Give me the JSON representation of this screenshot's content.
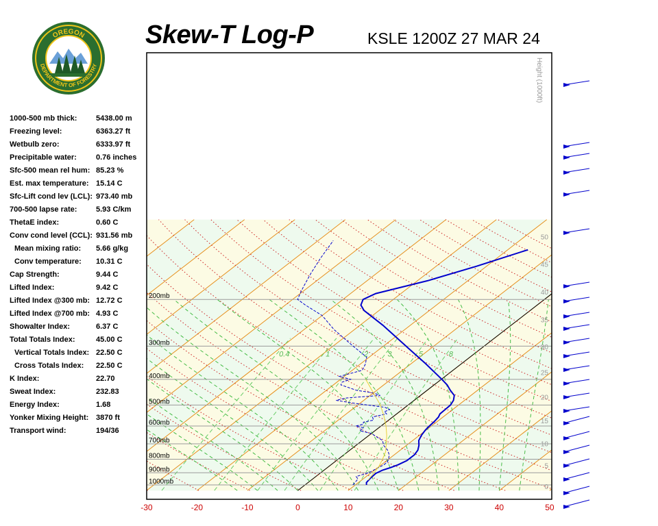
{
  "title": "Skew-T Log-P",
  "station_time": "KSLE 1200Z 27 MAR 24",
  "logo": {
    "top_text": "OREGON",
    "bottom_text": "DEPARTMENT OF FORESTRY",
    "colors": {
      "green": "#2b6e2f",
      "gold": "#f0c419"
    }
  },
  "indices": [
    {
      "label": "1000-500 mb thick:",
      "value": "5438.00 m",
      "indent": false
    },
    {
      "label": "Freezing level:",
      "value": "6363.27 ft",
      "indent": false
    },
    {
      "label": "Wetbulb zero:",
      "value": "6333.97 ft",
      "indent": false
    },
    {
      "label": "Precipitable water:",
      "value": "0.76 inches",
      "indent": false
    },
    {
      "label": "Sfc-500 mean rel hum:",
      "value": "85.23 %",
      "indent": false
    },
    {
      "label": "Est. max temperature:",
      "value": "15.14 C",
      "indent": false
    },
    {
      "label": "Sfc-Lift cond lev (LCL):",
      "value": "973.40 mb",
      "indent": false
    },
    {
      "label": "700-500 lapse rate:",
      "value": "5.93 C/km",
      "indent": false
    },
    {
      "label": "ThetaE index:",
      "value": "0.60 C",
      "indent": false
    },
    {
      "label": "Conv cond level (CCL):",
      "value": "931.56 mb",
      "indent": false
    },
    {
      "label": "Mean mixing ratio:",
      "value": "5.66 g/kg",
      "indent": true
    },
    {
      "label": "Conv temperature:",
      "value": "10.31 C",
      "indent": true
    },
    {
      "label": "Cap Strength:",
      "value": "9.44 C",
      "indent": false
    },
    {
      "label": "Lifted Index:",
      "value": "9.42 C",
      "indent": false
    },
    {
      "label": "Lifted Index @300 mb:",
      "value": "12.72 C",
      "indent": false
    },
    {
      "label": "Lifted Index @700 mb:",
      "value": "4.93 C",
      "indent": false
    },
    {
      "label": "Showalter Index:",
      "value": "6.37 C",
      "indent": false
    },
    {
      "label": "Total Totals Index:",
      "value": "45.00 C",
      "indent": false
    },
    {
      "label": "Vertical Totals Index:",
      "value": "22.50 C",
      "indent": true
    },
    {
      "label": "Cross Totals Index:",
      "value": "22.50 C",
      "indent": true
    },
    {
      "label": "K Index:",
      "value": "22.70",
      "indent": false
    },
    {
      "label": "Sweat Index:",
      "value": "232.83",
      "indent": false
    },
    {
      "label": "Energy Index:",
      "value": "1.68",
      "indent": false
    },
    {
      "label": "Yonker Mixing Height:",
      "value": "3870 ft",
      "indent": false
    },
    {
      "label": "Transport wind:",
      "value": "194/36",
      "indent": false
    }
  ],
  "chart_data": {
    "type": "line",
    "title": "Skew-T Log-P",
    "xlabel": "",
    "ylabel": "",
    "x_ticks": [
      "-30",
      "-20",
      "-10",
      "0",
      "10",
      "20",
      "30",
      "40",
      "50"
    ],
    "x_tick_values": [
      -30,
      -20,
      -10,
      0,
      10,
      20,
      30,
      40,
      50
    ],
    "pressure_levels": [
      {
        "p": 200,
        "label": "200mb"
      },
      {
        "p": 300,
        "label": "300mb"
      },
      {
        "p": 400,
        "label": "400mb"
      },
      {
        "p": 500,
        "label": "500mb"
      },
      {
        "p": 600,
        "label": "600mb"
      },
      {
        "p": 700,
        "label": "700mb"
      },
      {
        "p": 800,
        "label": "800mb"
      },
      {
        "p": 900,
        "label": "900mb"
      },
      {
        "p": 1000,
        "label": "1000mb"
      }
    ],
    "height_axis_label": "Height (1000ft)",
    "height_ticks": [
      {
        "label": "0",
        "p": 1013
      },
      {
        "label": "5",
        "p": 843
      },
      {
        "label": "10",
        "p": 697
      },
      {
        "label": "15",
        "p": 572
      },
      {
        "label": "20",
        "p": 466
      },
      {
        "label": "25",
        "p": 376
      },
      {
        "label": "30",
        "p": 301
      },
      {
        "label": "35",
        "p": 238
      },
      {
        "label": "40",
        "p": 187
      },
      {
        "label": "45",
        "p": 147
      },
      {
        "label": "50",
        "p": 116
      }
    ],
    "mixing_ratio_labels": [
      "0.4",
      "1",
      "2",
      "3",
      "5",
      "8"
    ],
    "mixing_ratio_values": [
      0.4,
      1,
      2,
      3,
      5,
      8
    ],
    "series": [
      {
        "role": "temperature",
        "color": "#0000cc",
        "points": [
          [
            1000,
            12.2
          ],
          [
            980,
            11.6
          ],
          [
            950,
            11.3
          ],
          [
            930,
            11.2
          ],
          [
            905,
            11.1
          ],
          [
            880,
            11.6
          ],
          [
            860,
            12.6
          ],
          [
            840,
            13.3
          ],
          [
            810,
            14.0
          ],
          [
            770,
            14.0
          ],
          [
            740,
            13.5
          ],
          [
            710,
            12.5
          ],
          [
            680,
            11.2
          ],
          [
            650,
            10.4
          ],
          [
            620,
            9.8
          ],
          [
            600,
            9.6
          ],
          [
            575,
            9.4
          ],
          [
            555,
            9.1
          ],
          [
            540,
            8.6
          ],
          [
            520,
            8.5
          ],
          [
            500,
            8.4
          ],
          [
            480,
            7.8
          ],
          [
            460,
            6.7
          ],
          [
            440,
            4.6
          ],
          [
            420,
            2.6
          ],
          [
            400,
            0.1
          ],
          [
            350,
            -7.0
          ],
          [
            300,
            -15.5
          ],
          [
            250,
            -25.5
          ],
          [
            220,
            -33.0
          ],
          [
            210,
            -35.0
          ],
          [
            200,
            -36.0
          ],
          [
            190,
            -35.0
          ],
          [
            170,
            -28.0
          ],
          [
            150,
            -22.0
          ],
          [
            130,
            -16.0
          ]
        ]
      },
      {
        "role": "dewpoint",
        "color": "#0000cc",
        "points": [
          [
            1000,
            9.5
          ],
          [
            950,
            9.0
          ],
          [
            930,
            8.0
          ],
          [
            900,
            9.5
          ],
          [
            870,
            10.0
          ],
          [
            840,
            10.5
          ],
          [
            820,
            10.5
          ],
          [
            800,
            10.0
          ],
          [
            770,
            9.0
          ],
          [
            740,
            7.5
          ],
          [
            710,
            5.5
          ],
          [
            680,
            4.0
          ],
          [
            660,
            2.0
          ],
          [
            640,
            0.0
          ],
          [
            625,
            -3.0
          ],
          [
            610,
            -3.0
          ],
          [
            600,
            -5.0
          ],
          [
            590,
            -4.0
          ],
          [
            580,
            -4.5
          ],
          [
            570,
            -3.0
          ],
          [
            555,
            -4.0
          ],
          [
            540,
            -2.0
          ],
          [
            530,
            -3.0
          ],
          [
            520,
            -2.5
          ],
          [
            510,
            -4.0
          ],
          [
            500,
            -8.0
          ],
          [
            490,
            -12.0
          ],
          [
            480,
            -15.5
          ],
          [
            470,
            -14.0
          ],
          [
            460,
            -8.0
          ],
          [
            450,
            -10.0
          ],
          [
            440,
            -14.0
          ],
          [
            420,
            -18.5
          ],
          [
            410,
            -19.0
          ],
          [
            400,
            -18.0
          ],
          [
            390,
            -21.0
          ],
          [
            370,
            -18.0
          ],
          [
            350,
            -19.0
          ],
          [
            330,
            -20.5
          ],
          [
            300,
            -26.0
          ],
          [
            260,
            -34.0
          ],
          [
            230,
            -40.0
          ],
          [
            210,
            -46.0
          ],
          [
            200,
            -49.0
          ],
          [
            190,
            -50.0
          ],
          [
            180,
            -51.0
          ],
          [
            160,
            -53.0
          ],
          [
            140,
            -55.0
          ],
          [
            120,
            -57.0
          ]
        ]
      },
      {
        "role": "parcel",
        "color": "#e8d23a",
        "points": [
          [
            960,
            11.3
          ],
          [
            900,
            10.6
          ],
          [
            850,
            9.9
          ],
          [
            800,
            8.8
          ],
          [
            750,
            7.5
          ],
          [
            700,
            5.6
          ],
          [
            650,
            3.5
          ],
          [
            600,
            1.0
          ],
          [
            550,
            -2.0
          ],
          [
            500,
            -5.5
          ],
          [
            450,
            -10.0
          ],
          [
            400,
            -15.0
          ]
        ]
      }
    ]
  }
}
